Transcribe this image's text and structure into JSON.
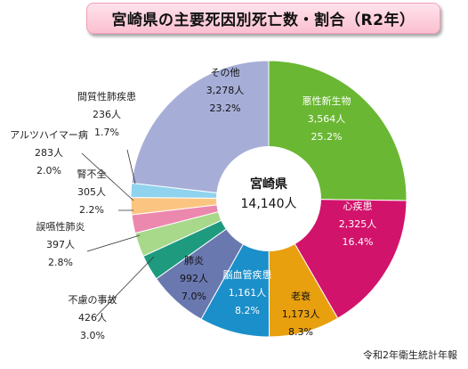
{
  "title": "宮崎県の主要死因別死亡数・割合（R2年）",
  "center": {
    "region": "宮崎県",
    "total": "14,140人"
  },
  "source": "令和2年衛生統計年報",
  "chart_data": {
    "type": "pie",
    "title": "宮崎県の主要死因別死亡数・割合（R2年）",
    "total": 14140,
    "slices": [
      {
        "name": "悪性新生物",
        "value": 3564,
        "count": "3,564人",
        "percent": "25.2%",
        "color": "#6ab733"
      },
      {
        "name": "心疾患",
        "value": 2325,
        "count": "2,325人",
        "percent": "16.4%",
        "color": "#d2136b"
      },
      {
        "name": "老衰",
        "value": 1173,
        "count": "1,173人",
        "percent": "8.3%",
        "color": "#e8a00f"
      },
      {
        "name": "脳血管疾患",
        "value": 1161,
        "count": "1,161人",
        "percent": "8.2%",
        "color": "#1b8fc9"
      },
      {
        "name": "肺炎",
        "value": 992,
        "count": "992人",
        "percent": "7.0%",
        "color": "#6a78b0"
      },
      {
        "name": "不慮の事故",
        "value": 426,
        "count": "426人",
        "percent": "3.0%",
        "color": "#1e9a7f"
      },
      {
        "name": "誤嚥性肺炎",
        "value": 397,
        "count": "397人",
        "percent": "2.8%",
        "color": "#a8d88a"
      },
      {
        "name": "腎不全",
        "value": 305,
        "count": "305人",
        "percent": "2.2%",
        "color": "#ec87ad"
      },
      {
        "name": "アルツハイマー病",
        "value": 283,
        "count": "283人",
        "percent": "2.0%",
        "color": "#fbc581"
      },
      {
        "name": "間質性肺疾患",
        "value": 236,
        "count": "236人",
        "percent": "1.7%",
        "color": "#8fd3ee"
      },
      {
        "name": "その他",
        "value": 3278,
        "count": "3,278人",
        "percent": "23.2%",
        "color": "#a6aed8"
      }
    ]
  }
}
